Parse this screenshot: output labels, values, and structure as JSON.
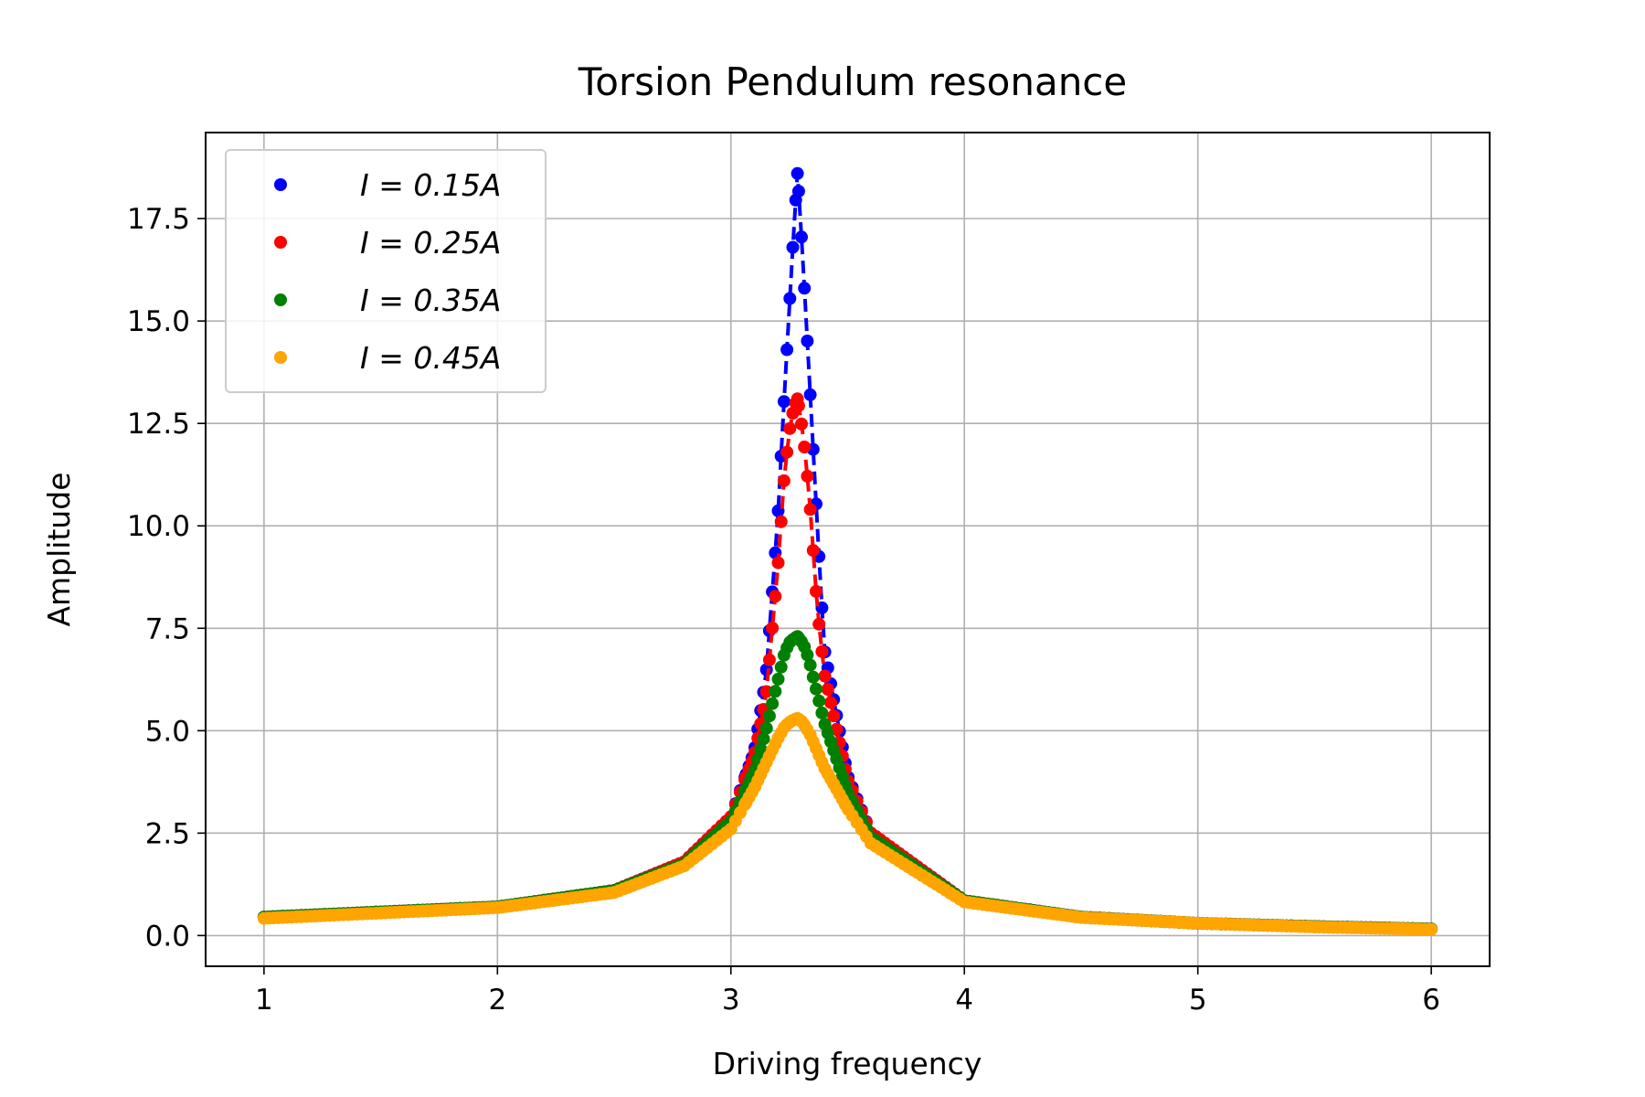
{
  "chart_data": {
    "type": "scatter",
    "title": "Torsion Pendulum resonance",
    "xlabel": "Driving frequency",
    "ylabel": "Amplitude",
    "xlim": [
      0.75,
      6.25
    ],
    "ylim": [
      -0.75,
      19.6
    ],
    "xticks": [
      1,
      2,
      3,
      4,
      5,
      6
    ],
    "xtick_labels": [
      "1",
      "2",
      "3",
      "4",
      "5",
      "6"
    ],
    "yticks": [
      0.0,
      2.5,
      5.0,
      7.5,
      10.0,
      12.5,
      15.0,
      17.5
    ],
    "ytick_labels": [
      "0.0",
      "2.5",
      "5.0",
      "7.5",
      "10.0",
      "12.5",
      "15.0",
      "17.5"
    ],
    "grid": true,
    "legend_position": "upper-left",
    "curve_style": "dashed line through markers",
    "resonance_frequency": 3.285,
    "x_range": [
      1,
      6
    ],
    "series": [
      {
        "name": "I = 0.15A",
        "color": "#0000ff",
        "peak_amplitude": 18.6,
        "x": [
          1.0,
          2.0,
          2.5,
          2.8,
          3.0,
          3.1,
          3.15,
          3.2,
          3.23,
          3.25,
          3.27,
          3.285,
          3.3,
          3.32,
          3.34,
          3.37,
          3.4,
          3.5,
          3.6,
          4.0,
          4.5,
          5.0,
          5.5,
          6.0
        ],
        "values": [
          0.45,
          0.7,
          1.1,
          1.8,
          2.9,
          4.5,
          6.3,
          10.1,
          13.3,
          15.3,
          17.3,
          18.6,
          17.3,
          15.3,
          13.2,
          10.0,
          7.0,
          3.9,
          2.5,
          0.85,
          0.45,
          0.3,
          0.22,
          0.16
        ]
      },
      {
        "name": "I = 0.25A",
        "color": "#ff0000",
        "peak_amplitude": 13.1,
        "x": [
          1.0,
          2.0,
          2.5,
          2.8,
          3.0,
          3.1,
          3.15,
          3.2,
          3.23,
          3.25,
          3.27,
          3.285,
          3.3,
          3.32,
          3.34,
          3.37,
          3.4,
          3.5,
          3.6,
          4.0,
          4.5,
          5.0,
          5.5,
          6.0
        ],
        "values": [
          0.45,
          0.7,
          1.1,
          1.8,
          2.9,
          4.4,
          5.8,
          8.9,
          11.3,
          12.3,
          12.9,
          13.1,
          12.6,
          11.7,
          10.4,
          8.0,
          6.4,
          3.8,
          2.5,
          0.85,
          0.45,
          0.3,
          0.22,
          0.16
        ]
      },
      {
        "name": "I = 0.35A",
        "color": "#008000",
        "peak_amplitude": 7.3,
        "x": [
          1.0,
          2.0,
          2.5,
          2.8,
          3.0,
          3.1,
          3.15,
          3.2,
          3.23,
          3.25,
          3.27,
          3.285,
          3.3,
          3.32,
          3.34,
          3.37,
          3.4,
          3.5,
          3.6,
          4.0,
          4.5,
          5.0,
          5.5,
          6.0
        ],
        "values": [
          0.45,
          0.7,
          1.1,
          1.75,
          2.8,
          4.0,
          5.0,
          6.2,
          6.9,
          7.15,
          7.25,
          7.3,
          7.2,
          7.0,
          6.6,
          5.9,
          5.2,
          3.5,
          2.4,
          0.85,
          0.45,
          0.3,
          0.22,
          0.16
        ]
      },
      {
        "name": "I = 0.45A",
        "color": "#ffa500",
        "peak_amplitude": 5.3,
        "x": [
          1.0,
          2.0,
          2.5,
          2.8,
          3.0,
          3.1,
          3.15,
          3.2,
          3.23,
          3.25,
          3.27,
          3.285,
          3.3,
          3.32,
          3.34,
          3.37,
          3.4,
          3.5,
          3.6,
          4.0,
          4.5,
          5.0,
          5.5,
          6.0
        ],
        "values": [
          0.42,
          0.68,
          1.05,
          1.7,
          2.6,
          3.6,
          4.2,
          4.8,
          5.1,
          5.2,
          5.27,
          5.3,
          5.25,
          5.1,
          4.9,
          4.5,
          4.1,
          3.1,
          2.25,
          0.82,
          0.44,
          0.3,
          0.21,
          0.15
        ]
      }
    ]
  }
}
